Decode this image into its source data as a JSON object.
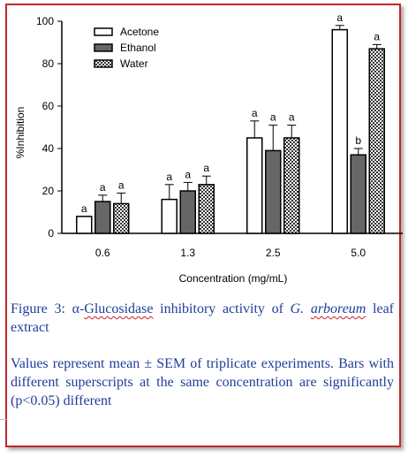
{
  "chart_data": {
    "type": "bar",
    "title": "",
    "xlabel": "Concentration (mg/mL)",
    "ylabel": "%Inhibition",
    "ylim": [
      0,
      100
    ],
    "yticks": [
      0,
      20,
      40,
      60,
      80,
      100
    ],
    "categories": [
      "0.6",
      "1.3",
      "2.5",
      "5.0"
    ],
    "series": [
      {
        "name": "Acetone",
        "values": [
          8,
          16,
          45,
          96
        ],
        "errors": [
          0,
          7,
          8,
          2
        ],
        "letters": [
          "a",
          "a",
          "a",
          "a"
        ]
      },
      {
        "name": "Ethanol",
        "values": [
          15,
          20,
          39,
          37
        ],
        "errors": [
          3,
          4,
          12,
          3
        ],
        "letters": [
          "a",
          "a",
          "a",
          "b"
        ]
      },
      {
        "name": "Water",
        "values": [
          14,
          23,
          45,
          87
        ],
        "errors": [
          5,
          4,
          6,
          2
        ],
        "letters": [
          "a",
          "a",
          "a",
          "a"
        ]
      }
    ],
    "legend_position": "top-left",
    "colors": {
      "Acetone": "#ffffff",
      "Ethanol": "#666666",
      "Water": "checkered"
    }
  },
  "caption": {
    "figure_label": "Figure 3: α-",
    "figure_term": "Glucosidase",
    "figure_mid": " inhibitory activity of ",
    "figure_genus": "G.",
    "figure_species": "arboreum",
    "figure_end": " leaf extract",
    "note": "Values represent mean ± SEM of triplicate experiments. Bars with different superscripts at the same concentration are significantly (p<0.05) different"
  }
}
